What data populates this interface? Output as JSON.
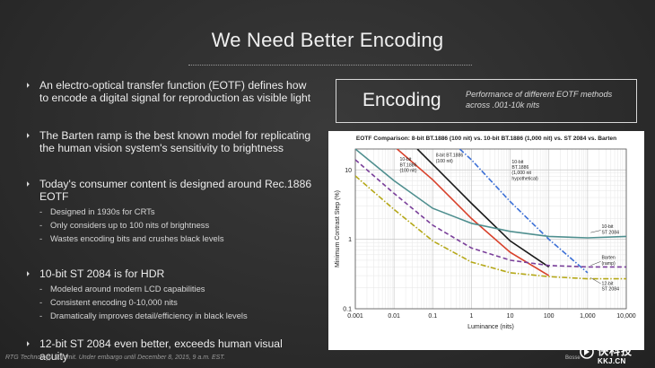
{
  "slide": {
    "title": "We Need Better Encoding",
    "footer": "RTG Technology Summit. Under embargo until December 8, 2015, 9 a.m. EST."
  },
  "bullets": [
    {
      "text": "An electro-optical transfer function (EOTF) defines how to encode a digital signal for reproduction as visible light",
      "subs": []
    },
    {
      "text": "The Barten ramp is the best known model for replicating the human vision system's sensitivity to brightness",
      "subs": []
    },
    {
      "text": "Today's consumer content is designed around Rec.1886 EOTF",
      "subs": [
        "Designed in 1930s for CRTs",
        "Only considers up to 100 nits of brightness",
        "Wastes encoding bits and crushes black levels"
      ]
    },
    {
      "text": "10-bit ST 2084 is for HDR",
      "subs": [
        "Modeled around modern LCD capabilities",
        "Consistent encoding 0-10,000 nits",
        "Dramatically improves detail/efficiency in black levels"
      ]
    },
    {
      "text": "12-bit ST 2084  even better, exceeds human visual acuity",
      "subs": []
    }
  ],
  "panel": {
    "title": "Encoding",
    "subtitle": "Performance of different EOTF methods across .001-10k nits"
  },
  "watermark": {
    "name": "快科技",
    "url": "KKJ.CN",
    "small": "Bosse"
  },
  "chart_data": {
    "type": "line",
    "title": "EOTF Comparison: 8-bit BT.1886 (100 nit) vs. 10-bit BT.1886 (1,000 nit) vs. ST 2084 vs. Barten",
    "xlabel": "Luminance (nits)",
    "ylabel": "Minimum Contrast Step (%)",
    "x_scale": "log",
    "y_scale": "log",
    "xlim": [
      0.001,
      10000
    ],
    "ylim": [
      0.1,
      20
    ],
    "x_ticks": [
      "0.001",
      "0.01",
      "0.1",
      "1",
      "10",
      "100",
      "1,000",
      "10,000"
    ],
    "y_ticks": [
      "0.1",
      "1",
      "10"
    ],
    "grid": true,
    "series": [
      {
        "name": "8-bit BT.1886 (100 nit)",
        "color": "#1a1a1a",
        "style": "solid",
        "points": [
          [
            0.04,
            20
          ],
          [
            0.1,
            12
          ],
          [
            1,
            3.3
          ],
          [
            10,
            0.95
          ],
          [
            100,
            0.4
          ]
        ]
      },
      {
        "name": "10-bit BT.1886 (1,000 nit hypothetical)",
        "color": "#3b6fd6",
        "style": "dashdot",
        "points": [
          [
            0.5,
            20
          ],
          [
            1,
            14
          ],
          [
            10,
            3.5
          ],
          [
            100,
            1.0
          ],
          [
            1000,
            0.33
          ]
        ]
      },
      {
        "name": "10-bit BT.1886 (100 nit)",
        "color": "#d8412b",
        "style": "solid",
        "points": [
          [
            0.012,
            20
          ],
          [
            0.1,
            7.2
          ],
          [
            1,
            2.0
          ],
          [
            10,
            0.65
          ],
          [
            100,
            0.3
          ]
        ]
      },
      {
        "name": "10-bit ST 2084",
        "color": "#4f8f8f",
        "style": "solid",
        "points": [
          [
            0.001,
            20
          ],
          [
            0.01,
            7.0
          ],
          [
            0.1,
            2.8
          ],
          [
            1,
            1.7
          ],
          [
            10,
            1.3
          ],
          [
            100,
            1.1
          ],
          [
            1000,
            1.05
          ],
          [
            10000,
            1.1
          ]
        ]
      },
      {
        "name": "Barten (ramp)",
        "color": "#7a3f9a",
        "style": "dashed",
        "points": [
          [
            0.001,
            14
          ],
          [
            0.01,
            4.6
          ],
          [
            0.1,
            1.6
          ],
          [
            1,
            0.75
          ],
          [
            10,
            0.5
          ],
          [
            100,
            0.42
          ],
          [
            1000,
            0.4
          ],
          [
            10000,
            0.4
          ]
        ]
      },
      {
        "name": "12-bit ST 2084",
        "color": "#b5a818",
        "style": "dashdot",
        "points": [
          [
            0.001,
            8.2
          ],
          [
            0.01,
            2.7
          ],
          [
            0.1,
            0.95
          ],
          [
            1,
            0.47
          ],
          [
            10,
            0.33
          ],
          [
            100,
            0.29
          ],
          [
            1000,
            0.27
          ],
          [
            10000,
            0.27
          ]
        ]
      }
    ],
    "labels": [
      {
        "text": [
          "10-bit",
          "BT.1886",
          "(100 nit)"
        ],
        "series": 2
      },
      {
        "text": [
          "8-bit BT.1886",
          "(100 nit)"
        ],
        "series": 0
      },
      {
        "text": [
          "10-bit",
          "BT.1886",
          "(1,000 nit",
          "hypothetical)"
        ],
        "series": 1
      },
      {
        "text": [
          "10-bit",
          "ST 2084"
        ],
        "series": 3
      },
      {
        "text": [
          "Barten",
          "(ramp)"
        ],
        "series": 4
      },
      {
        "text": [
          "12-bit",
          "ST 2084"
        ],
        "series": 5
      }
    ]
  }
}
